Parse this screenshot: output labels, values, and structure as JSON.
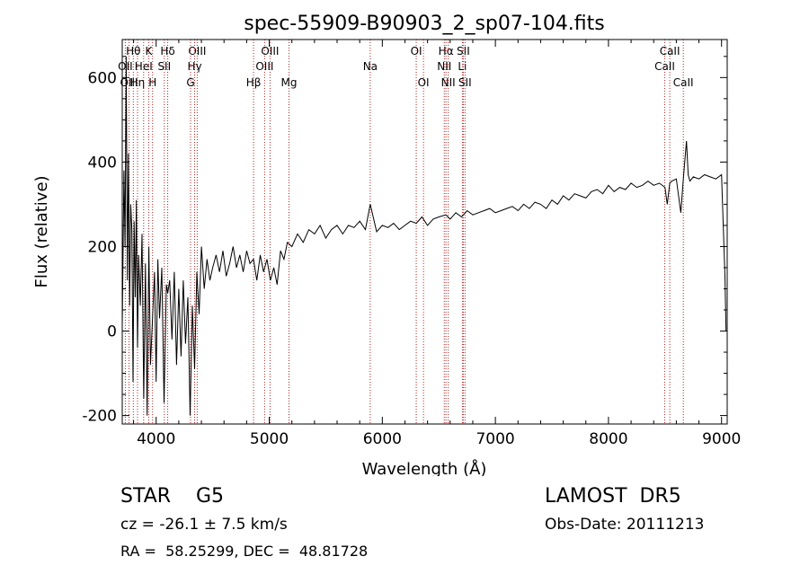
{
  "chart_data": {
    "type": "line",
    "title": "spec-55909-B90903_2_sp07-104.fits",
    "xlabel": "Wavelength (Å)",
    "ylabel": "Flux (relative)",
    "xlim": [
      3700,
      9050
    ],
    "ylim": [
      -220,
      690
    ],
    "x_ticks": [
      4000,
      5000,
      6000,
      7000,
      8000,
      9000
    ],
    "y_ticks": [
      -200,
      0,
      200,
      400,
      600
    ],
    "grid": false,
    "line_color": "#000000",
    "marker_color": "#b22222",
    "line_markers": [
      {
        "label": "Hθ",
        "wavelength": 3798,
        "row": 0
      },
      {
        "label": "K",
        "wavelength": 3934,
        "row": 0
      },
      {
        "label": "Hδ",
        "wavelength": 4102,
        "row": 0
      },
      {
        "label": "OIII",
        "wavelength": 4363,
        "row": 0
      },
      {
        "label": "OIII",
        "wavelength": 5007,
        "row": 0
      },
      {
        "label": "OI",
        "wavelength": 6300,
        "row": 0
      },
      {
        "label": "Hα",
        "wavelength": 6563,
        "row": 0
      },
      {
        "label": "SII",
        "wavelength": 6716,
        "row": 0
      },
      {
        "label": "CaII",
        "wavelength": 8542,
        "row": 0
      },
      {
        "label": "OII",
        "wavelength": 3727,
        "row": 1
      },
      {
        "label": "HeI",
        "wavelength": 3889,
        "row": 1
      },
      {
        "label": "SII",
        "wavelength": 4072,
        "row": 1
      },
      {
        "label": "Hγ",
        "wavelength": 4340,
        "row": 1
      },
      {
        "label": "OIII",
        "wavelength": 4959,
        "row": 1
      },
      {
        "label": "Na",
        "wavelength": 5893,
        "row": 1
      },
      {
        "label": "NII",
        "wavelength": 6548,
        "row": 1
      },
      {
        "label": "Li",
        "wavelength": 6708,
        "row": 1
      },
      {
        "label": "CaII",
        "wavelength": 8498,
        "row": 1
      },
      {
        "label": "OIII",
        "wavelength": 3760,
        "row": 2
      },
      {
        "label": "Hη",
        "wavelength": 3835,
        "row": 2
      },
      {
        "label": "H",
        "wavelength": 3968,
        "row": 2
      },
      {
        "label": "G",
        "wavelength": 4304,
        "row": 2
      },
      {
        "label": "Hβ",
        "wavelength": 4861,
        "row": 2
      },
      {
        "label": "Mg",
        "wavelength": 5175,
        "row": 2
      },
      {
        "label": "OI",
        "wavelength": 6364,
        "row": 2
      },
      {
        "label": "NII",
        "wavelength": 6583,
        "row": 2
      },
      {
        "label": "SII",
        "wavelength": 6731,
        "row": 2
      },
      {
        "label": "CaII",
        "wavelength": 8662,
        "row": 2
      }
    ],
    "series": [
      {
        "x": [
          3700,
          3715,
          3725,
          3735,
          3745,
          3755,
          3765,
          3775,
          3785,
          3795,
          3805,
          3815,
          3825,
          3835,
          3845,
          3860,
          3875,
          3890,
          3905,
          3920,
          3935,
          3950,
          3968,
          3985,
          4000,
          4015,
          4030,
          4050,
          4070,
          4090,
          4102,
          4120,
          4140,
          4160,
          4180,
          4200,
          4220,
          4240,
          4260,
          4280,
          4300,
          4320,
          4340,
          4360,
          4380,
          4400,
          4425,
          4450,
          4475,
          4500,
          4530,
          4560,
          4590,
          4620,
          4650,
          4680,
          4710,
          4740,
          4770,
          4800,
          4830,
          4861,
          4890,
          4920,
          4950,
          4980,
          5010,
          5040,
          5070,
          5100,
          5130,
          5160,
          5200,
          5250,
          5300,
          5350,
          5400,
          5450,
          5500,
          5550,
          5600,
          5650,
          5700,
          5750,
          5800,
          5850,
          5893,
          5950,
          6000,
          6050,
          6100,
          6150,
          6200,
          6250,
          6300,
          6350,
          6400,
          6450,
          6500,
          6563,
          6600,
          6650,
          6700,
          6750,
          6800,
          6850,
          6900,
          6950,
          7000,
          7050,
          7100,
          7150,
          7200,
          7250,
          7300,
          7350,
          7400,
          7450,
          7500,
          7550,
          7600,
          7650,
          7700,
          7750,
          7800,
          7850,
          7900,
          7950,
          8000,
          8050,
          8100,
          8150,
          8200,
          8250,
          8300,
          8350,
          8400,
          8450,
          8500,
          8520,
          8542,
          8560,
          8600,
          8640,
          8662,
          8690,
          8705,
          8720,
          8750,
          8800,
          8850,
          8900,
          8950,
          9000,
          9030,
          9040
        ],
        "y": [
          10,
          380,
          200,
          650,
          120,
          420,
          60,
          300,
          240,
          -120,
          260,
          80,
          310,
          -40,
          180,
          60,
          230,
          -160,
          160,
          -200,
          200,
          -80,
          30,
          140,
          -120,
          170,
          30,
          150,
          -170,
          110,
          90,
          120,
          -20,
          140,
          -80,
          100,
          -60,
          120,
          -30,
          80,
          -200,
          60,
          -90,
          140,
          40,
          200,
          100,
          170,
          120,
          150,
          180,
          140,
          190,
          130,
          160,
          200,
          150,
          180,
          140,
          190,
          160,
          170,
          120,
          180,
          140,
          170,
          120,
          150,
          110,
          190,
          170,
          210,
          200,
          230,
          210,
          240,
          230,
          250,
          220,
          240,
          250,
          230,
          250,
          245,
          260,
          240,
          300,
          235,
          250,
          245,
          255,
          240,
          250,
          260,
          255,
          270,
          250,
          265,
          270,
          275,
          265,
          280,
          270,
          285,
          275,
          280,
          285,
          290,
          280,
          285,
          290,
          295,
          285,
          300,
          290,
          305,
          300,
          290,
          310,
          300,
          320,
          310,
          325,
          320,
          315,
          330,
          335,
          325,
          345,
          330,
          340,
          335,
          350,
          340,
          345,
          355,
          345,
          350,
          340,
          300,
          350,
          355,
          360,
          280,
          360,
          450,
          370,
          355,
          365,
          360,
          370,
          365,
          360,
          370,
          130,
          0
        ]
      }
    ]
  },
  "info": {
    "object_class": "STAR    G5",
    "survey": "LAMOST  DR5",
    "redshift": "cz = -26.1 ± 7.5 km/s",
    "obs_date": "Obs-Date: 20111213",
    "coords": "RA =  58.25299, DEC =  48.81728"
  }
}
